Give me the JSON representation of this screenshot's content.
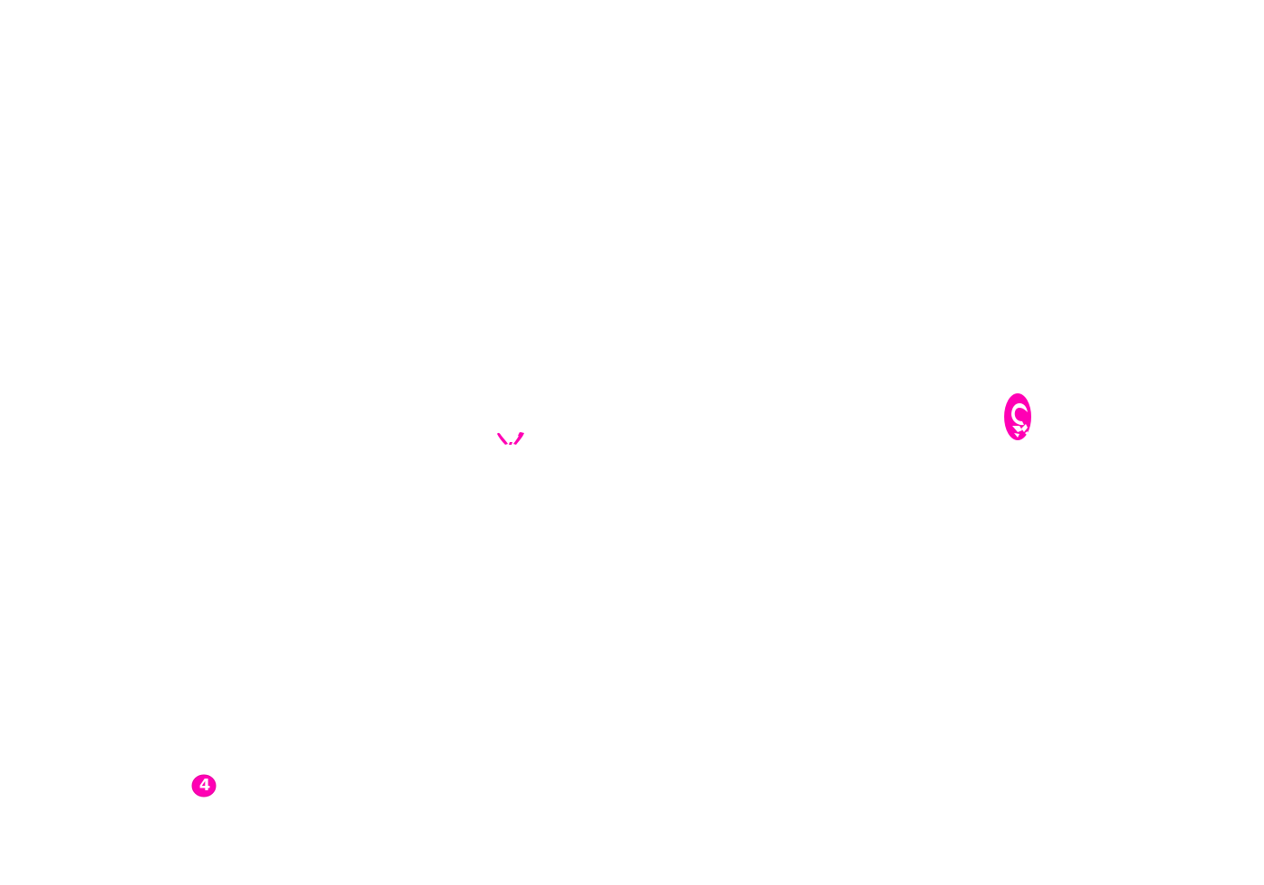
{
  "colors": {
    "background": "#ffffff",
    "accent": "#ff00b4",
    "accent_dark": "#e600a0"
  },
  "fragments": {
    "left_marker": {
      "label": "4",
      "icon": "numbered-badge-icon"
    },
    "center_marks": {
      "icon": "chevron-fragment-icon"
    },
    "right_marker": {
      "icon": "oval-glyph-fragment-icon"
    }
  }
}
